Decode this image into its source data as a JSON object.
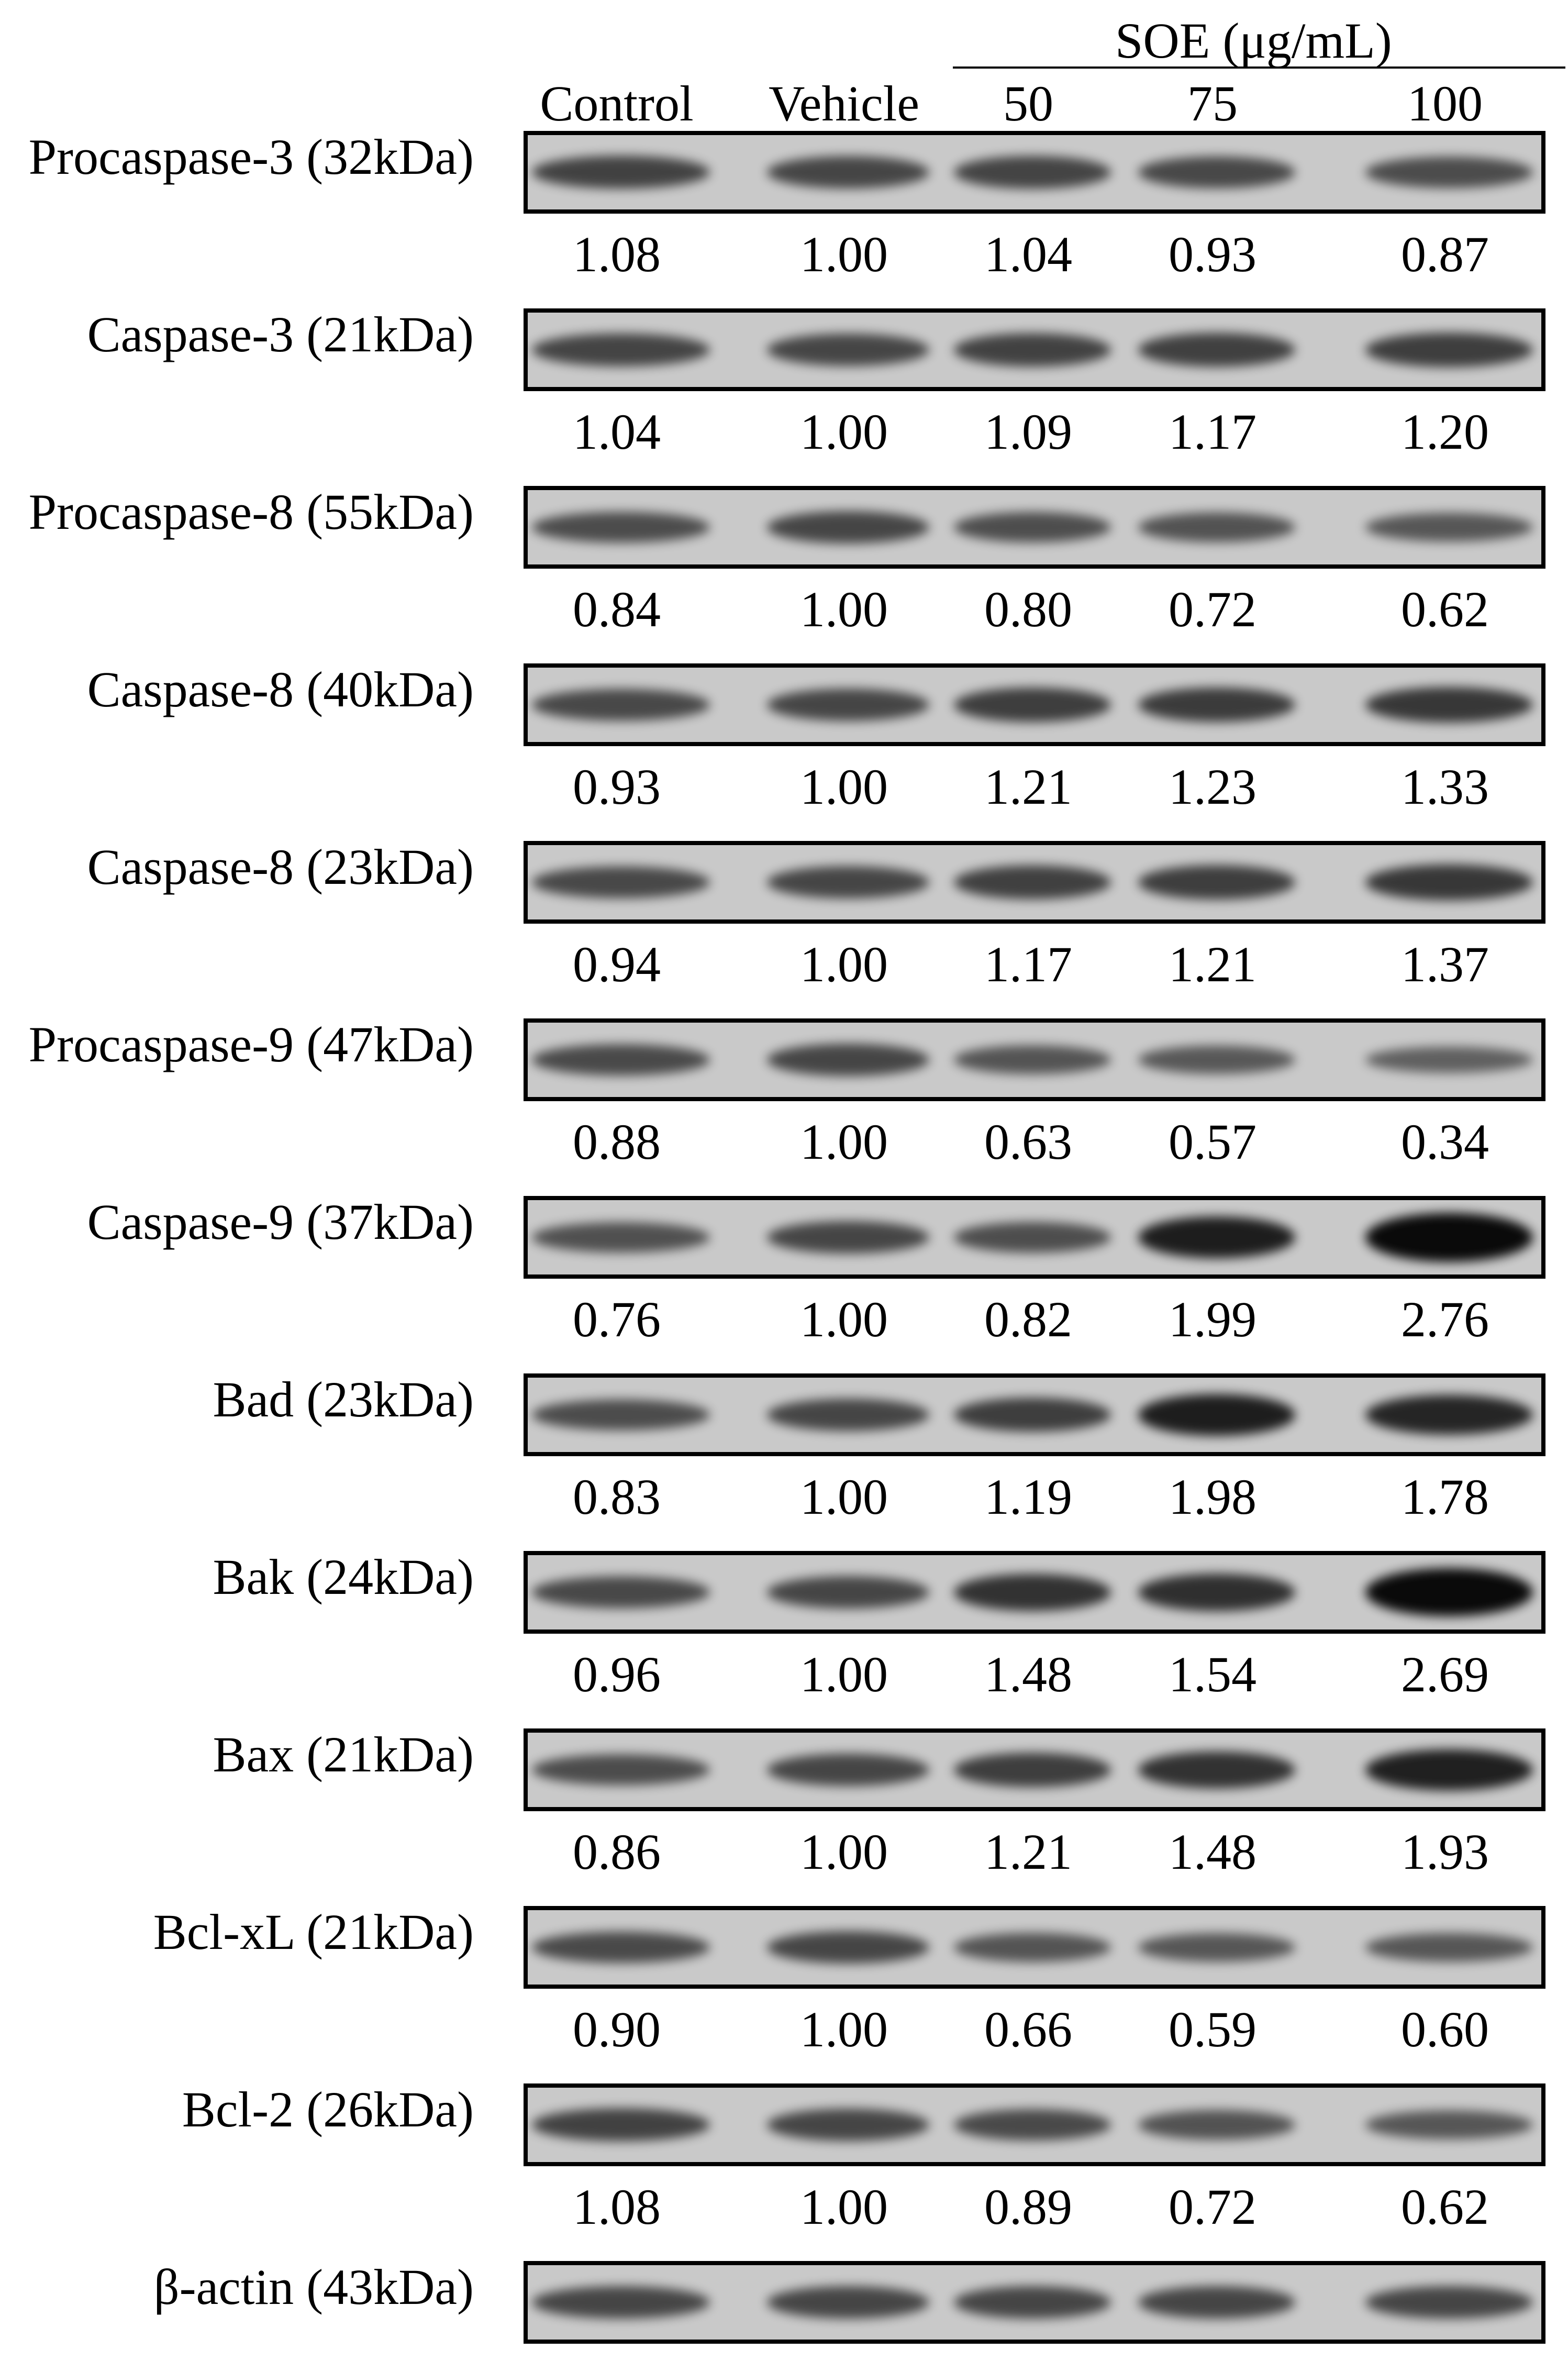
{
  "group_label": "SOE (μg/mL)",
  "lanes": [
    "Control",
    "Vehicle",
    "50",
    "75",
    "100"
  ],
  "blots": [
    {
      "label": "Procaspase-3 (32kDa)",
      "values": [
        "1.08",
        "1.00",
        "1.04",
        "0.93",
        "0.87"
      ]
    },
    {
      "label": "Caspase-3 (21kDa)",
      "values": [
        "1.04",
        "1.00",
        "1.09",
        "1.17",
        "1.20"
      ]
    },
    {
      "label": "Procaspase-8 (55kDa)",
      "values": [
        "0.84",
        "1.00",
        "0.80",
        "0.72",
        "0.62"
      ]
    },
    {
      "label": "Caspase-8 (40kDa)",
      "values": [
        "0.93",
        "1.00",
        "1.21",
        "1.23",
        "1.33"
      ]
    },
    {
      "label": "Caspase-8 (23kDa)",
      "values": [
        "0.94",
        "1.00",
        "1.17",
        "1.21",
        "1.37"
      ]
    },
    {
      "label": "Procaspase-9 (47kDa)",
      "values": [
        "0.88",
        "1.00",
        "0.63",
        "0.57",
        "0.34"
      ]
    },
    {
      "label": "Caspase-9 (37kDa)",
      "values": [
        "0.76",
        "1.00",
        "0.82",
        "1.99",
        "2.76"
      ]
    },
    {
      "label": "Bad (23kDa)",
      "values": [
        "0.83",
        "1.00",
        "1.19",
        "1.98",
        "1.78"
      ]
    },
    {
      "label": "Bak (24kDa)",
      "values": [
        "0.96",
        "1.00",
        "1.48",
        "1.54",
        "2.69"
      ]
    },
    {
      "label": "Bax (21kDa)",
      "values": [
        "0.86",
        "1.00",
        "1.21",
        "1.48",
        "1.93"
      ]
    },
    {
      "label": "Bcl-xL (21kDa)",
      "values": [
        "0.90",
        "1.00",
        "0.66",
        "0.59",
        "0.60"
      ]
    },
    {
      "label": "Bcl-2 (26kDa)",
      "values": [
        "1.08",
        "1.00",
        "0.89",
        "0.72",
        "0.62"
      ]
    },
    {
      "label": "β-actin (43kDa)",
      "values": []
    }
  ],
  "colors": {
    "ink": "#000000",
    "membrane": "#c9c9c9",
    "background": "#ffffff"
  }
}
